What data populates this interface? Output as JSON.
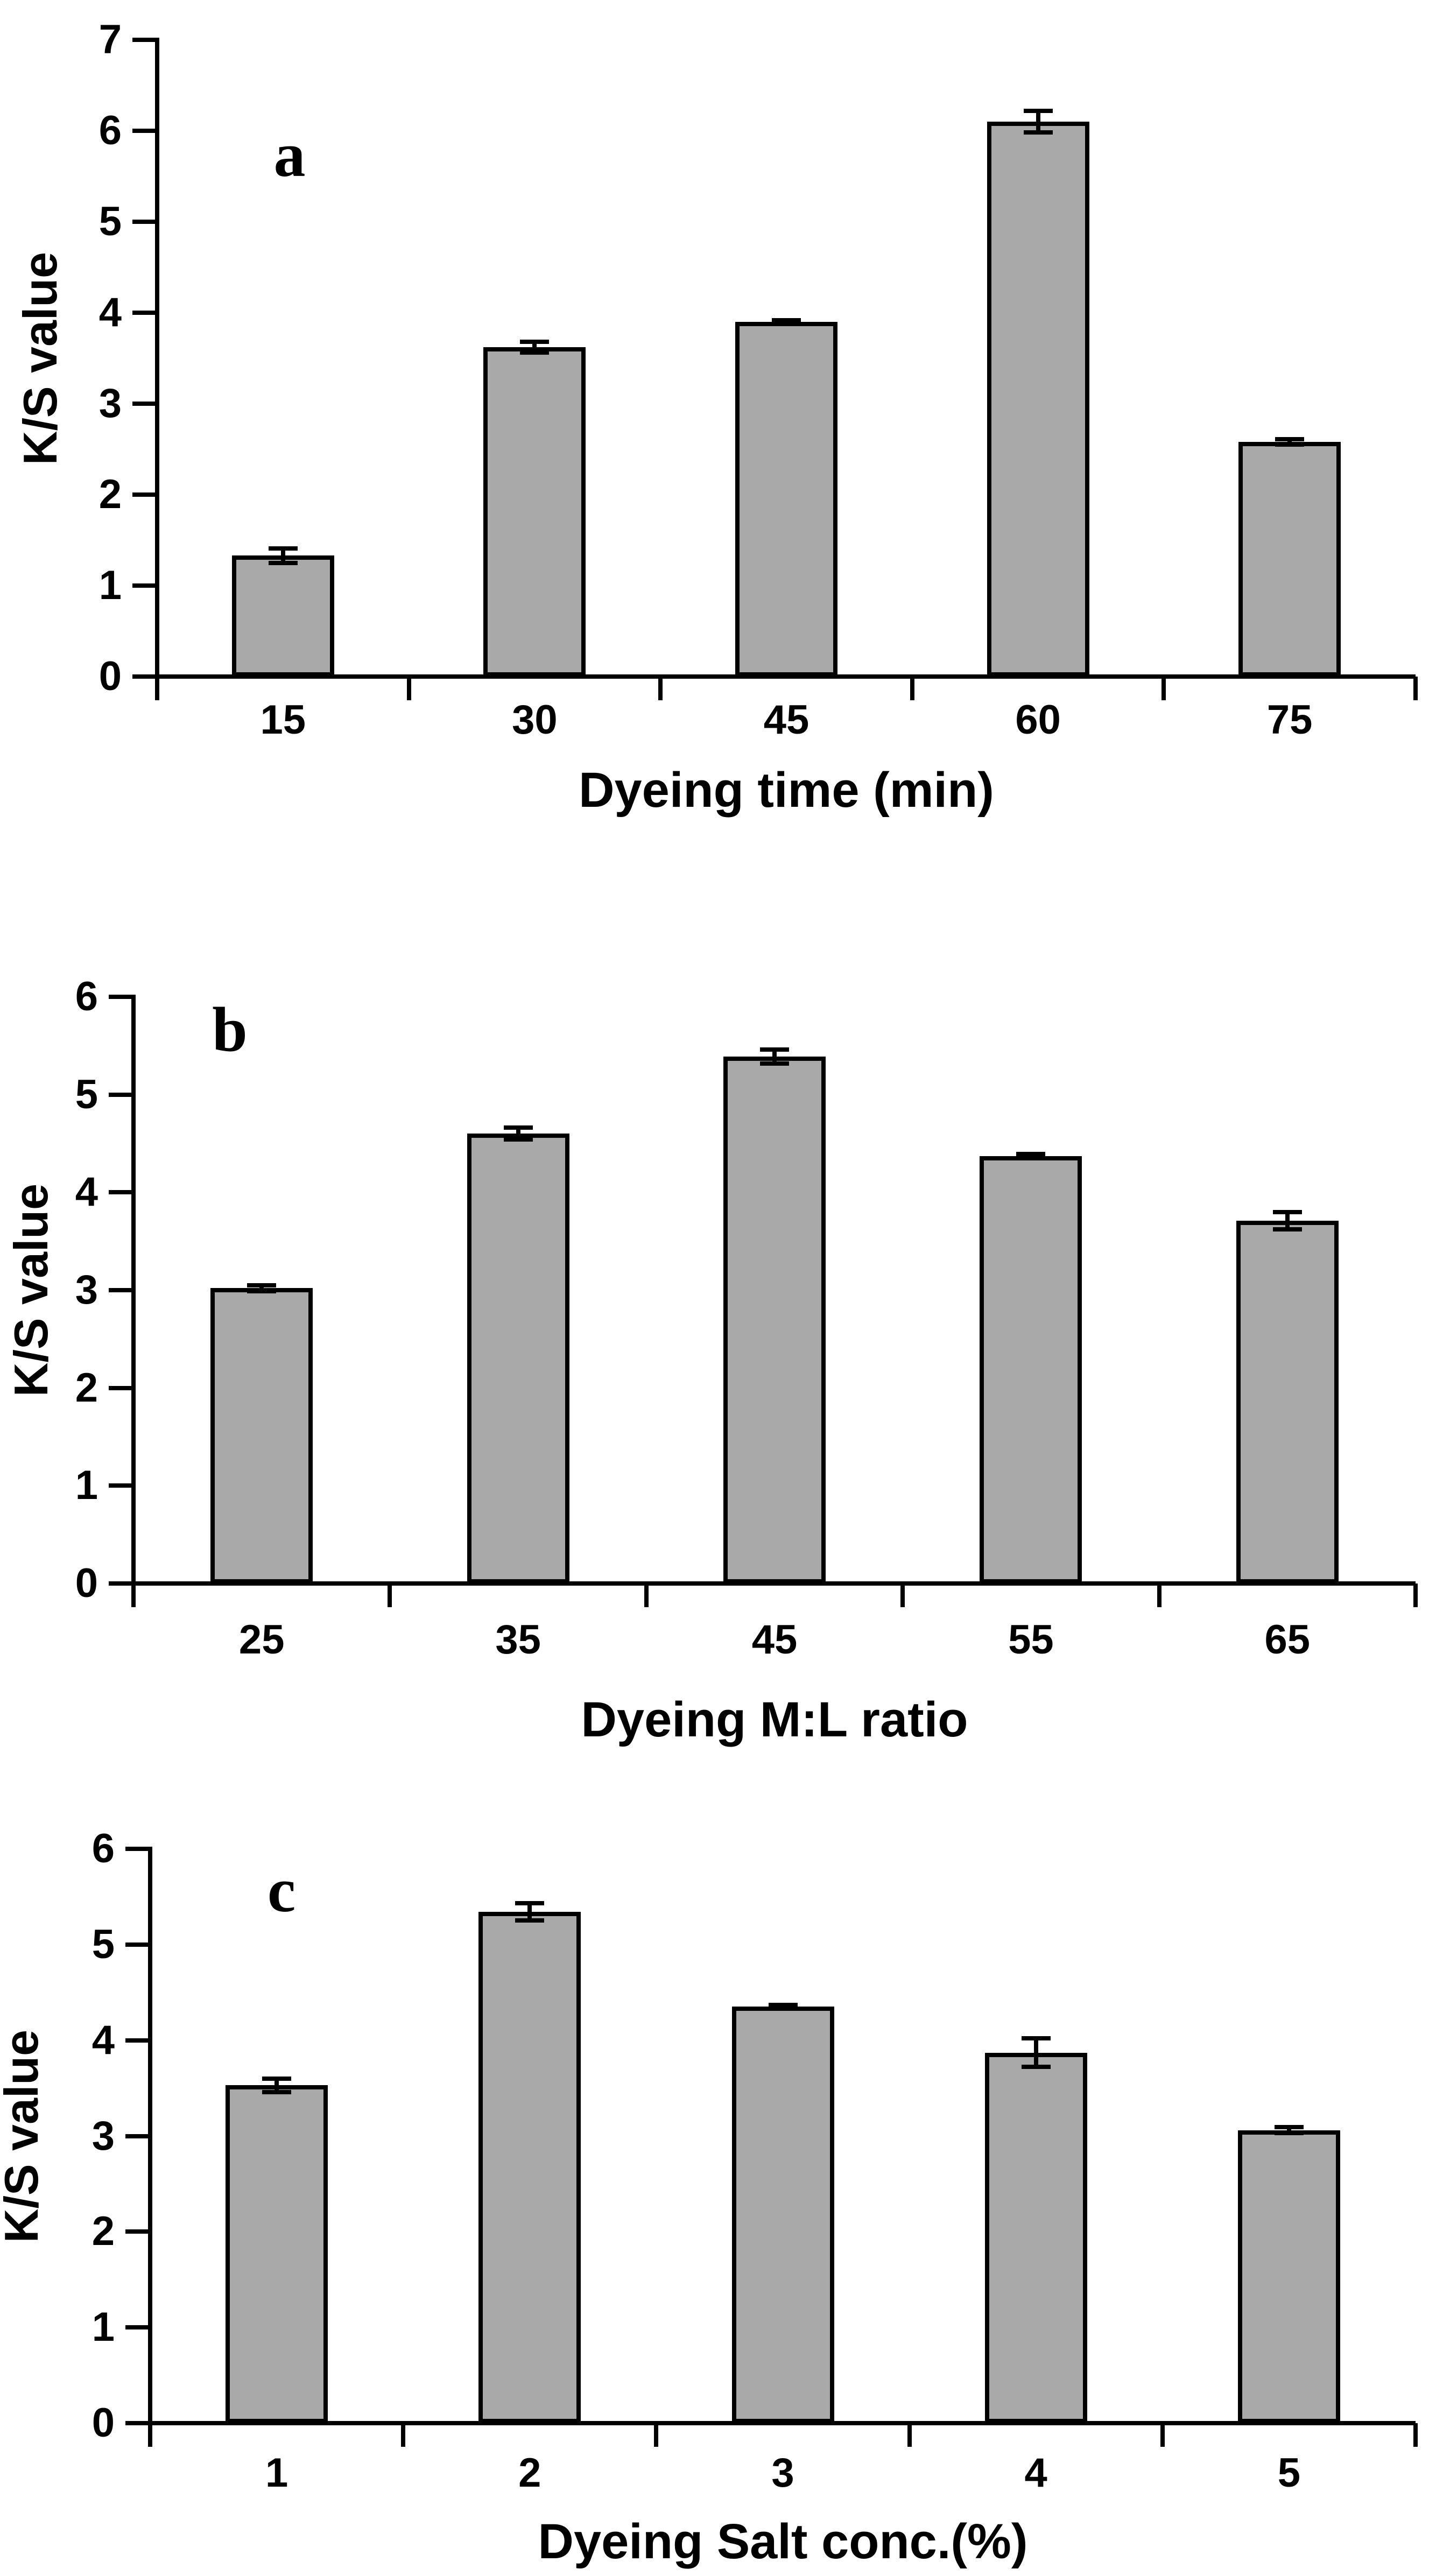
{
  "figure": {
    "background": "#ffffff",
    "bar_fill": "#a9a9a9",
    "bar_border": "#000000",
    "axis_color": "#000000"
  },
  "chart_data": [
    {
      "type": "bar",
      "panel": "a",
      "ylabel": "K/S value",
      "xlabel": "Dyeing time (min)",
      "categories": [
        "15",
        "30",
        "45",
        "60",
        "75"
      ],
      "values": [
        1.33,
        3.62,
        3.9,
        6.1,
        2.58
      ],
      "errors": [
        0.08,
        0.06,
        0.02,
        0.12,
        0.03
      ],
      "ylim": [
        0,
        7
      ],
      "yticks": [
        0,
        1,
        2,
        3,
        4,
        5,
        6,
        7
      ],
      "grid": false,
      "legend": false
    },
    {
      "type": "bar",
      "panel": "b",
      "ylabel": "K/S value",
      "xlabel": "Dyeing M:L ratio",
      "categories": [
        "25",
        "35",
        "45",
        "55",
        "65"
      ],
      "values": [
        3.02,
        4.6,
        5.39,
        4.37,
        3.71
      ],
      "errors": [
        0.03,
        0.06,
        0.07,
        0.02,
        0.09
      ],
      "ylim": [
        0,
        6
      ],
      "yticks": [
        0,
        1,
        2,
        3,
        4,
        5,
        6
      ],
      "grid": false,
      "legend": false
    },
    {
      "type": "bar",
      "panel": "c",
      "ylabel": "K/S value",
      "xlabel": "Dyeing Salt conc.(%)",
      "categories": [
        "1",
        "2",
        "3",
        "4",
        "5"
      ],
      "values": [
        3.53,
        5.34,
        4.35,
        3.87,
        3.06
      ],
      "errors": [
        0.07,
        0.09,
        0.02,
        0.15,
        0.03
      ],
      "ylim": [
        0,
        6
      ],
      "yticks": [
        0,
        1,
        2,
        3,
        4,
        5,
        6
      ],
      "grid": false,
      "legend": false
    }
  ]
}
